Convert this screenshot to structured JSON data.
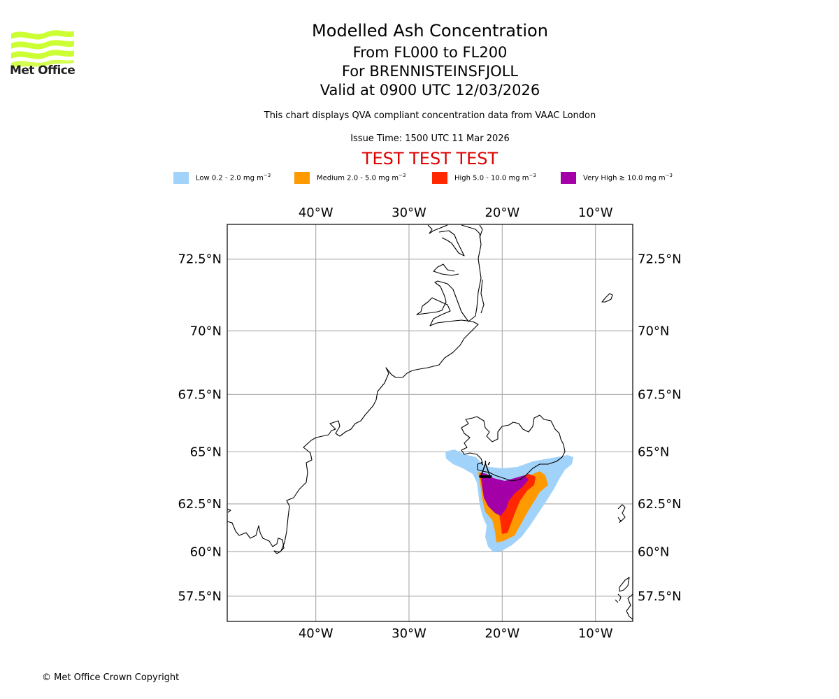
{
  "header": {
    "logo_text": "Met Office",
    "title": "Modelled Ash Concentration",
    "subtitle_levels": "From FL000 to FL200",
    "subtitle_volcano": "For BRENNISTEINSFJOLL",
    "subtitle_valid": "Valid at 0900 UTC 12/03/2026",
    "description": "This chart displays QVA compliant concentration data from VAAC London",
    "issue_time": "Issue Time: 1500 UTC 11 Mar 2026",
    "test_banner": "TEST TEST TEST"
  },
  "colors": {
    "logo_green": "#ccff33",
    "test_banner": "#dd0000",
    "gridline": "#b0b0b0",
    "coastline": "#000000"
  },
  "legend": [
    {
      "name": "Low",
      "label": "Low 0.2 - 2.0 mg m",
      "exp": "−3",
      "color": "#a0d2fa"
    },
    {
      "name": "Medium",
      "label": "Medium 2.0 - 5.0 mg m",
      "exp": "−3",
      "color": "#ff9900"
    },
    {
      "name": "High",
      "label": "High 5.0 - 10.0 mg m",
      "exp": "−3",
      "color": "#ff2800"
    },
    {
      "name": "Very High",
      "label": "Very High  ≥  10.0 mg m",
      "exp": "−3",
      "color": "#a300a8"
    }
  ],
  "map": {
    "extent": {
      "lon_min": -49.5,
      "lon_max": -6.0,
      "lat_min": 56.0,
      "lat_max": 73.6
    },
    "lon_ticks": [
      {
        "value": -40,
        "label": "40°W"
      },
      {
        "value": -30,
        "label": "30°W"
      },
      {
        "value": -20,
        "label": "20°W"
      },
      {
        "value": -10,
        "label": "10°W"
      }
    ],
    "lat_ticks": [
      {
        "value": 72.5,
        "label": "72.5°N"
      },
      {
        "value": 70,
        "label": "70°N"
      },
      {
        "value": 67.5,
        "label": "67.5°N"
      },
      {
        "value": 65,
        "label": "65°N"
      },
      {
        "value": 62.5,
        "label": "62.5°N"
      },
      {
        "value": 60,
        "label": "60°N"
      },
      {
        "value": 57.5,
        "label": "57.5°N"
      }
    ],
    "volcano": {
      "name": "BRENNISTEINSFJOLL",
      "lon": -21.8,
      "lat": 63.93
    }
  },
  "footer": {
    "copyright": "© Met Office Crown Copyright"
  }
}
